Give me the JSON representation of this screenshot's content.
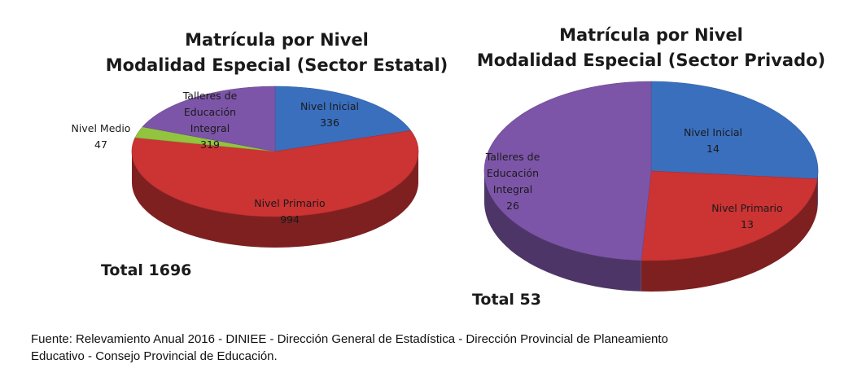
{
  "chart_data": [
    {
      "type": "pie",
      "title_line1": "Matrícula por  Nivel",
      "title_line2": "Modalidad  Especial  (Sector Estatal)",
      "total": "Total 1696",
      "slices": [
        {
          "label_lines": [
            "Nivel Inicial"
          ],
          "value": 336,
          "color": "#3a6fbe"
        },
        {
          "label_lines": [
            "Nivel Primario"
          ],
          "value": 994,
          "color": "#cc3333"
        },
        {
          "label_lines": [
            "Nivel Medio"
          ],
          "value": 47,
          "color": "#92c43f"
        },
        {
          "label_lines": [
            "Talleres de",
            "Educación",
            "Integral"
          ],
          "value": 319,
          "color": "#7d55a8"
        }
      ]
    },
    {
      "type": "pie",
      "title_line1": "Matrícula por  Nivel",
      "title_line2": "Modalidad  Especial  (Sector Privado)",
      "total": "Total 53",
      "slices": [
        {
          "label_lines": [
            "Nivel Inicial"
          ],
          "value": 14,
          "color": "#3a6fbe"
        },
        {
          "label_lines": [
            "Nivel Primario"
          ],
          "value": 13,
          "color": "#cc3333"
        },
        {
          "label_lines": [
            "Talleres de",
            "Educación",
            "Integral"
          ],
          "value": 26,
          "color": "#7d55a8"
        }
      ]
    }
  ],
  "footer": {
    "source_line1": "Fuente: Relevamiento Anual 2016 - DINIEE - Dirección General de Estadística - Dirección Provincial de Planeamiento",
    "source_line2": "Educativo - Consejo Provincial de Educación."
  }
}
